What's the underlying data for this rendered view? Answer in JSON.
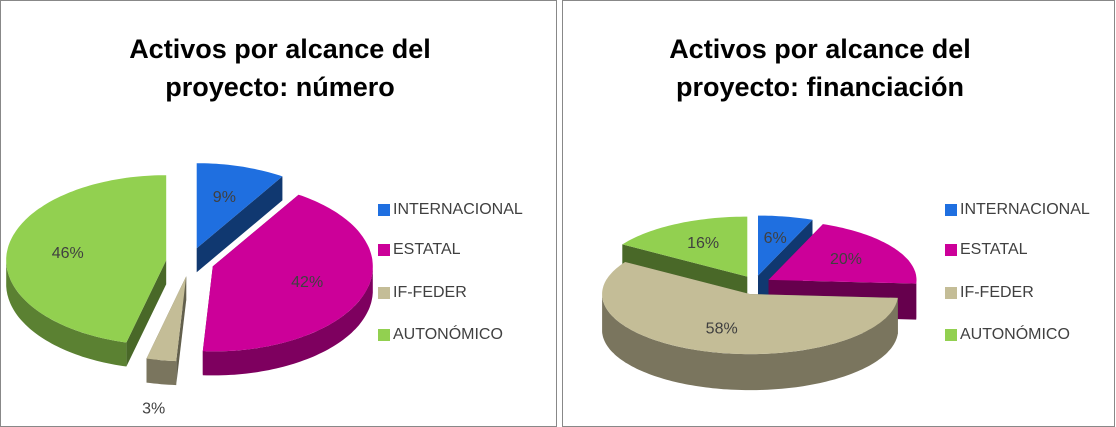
{
  "chart_data": [
    {
      "type": "pie",
      "title": "Activos por alcance del proyecto: número",
      "categories": [
        "INTERNACIONAL",
        "ESTATAL",
        "IF-FEDER",
        "AUTONÓMICO"
      ],
      "values": [
        9,
        42,
        3,
        46
      ],
      "value_labels": [
        "9%",
        "42%",
        "3%",
        "46%"
      ],
      "colors": [
        "#1f6fe0",
        "#cc0099",
        "#c4bd97",
        "#92d050"
      ],
      "legend": "right"
    },
    {
      "type": "pie",
      "title": "Activos por alcance del proyecto: financiación",
      "categories": [
        "INTERNACIONAL",
        "ESTATAL",
        "IF-FEDER",
        "AUTONÓMICO"
      ],
      "values": [
        6,
        20,
        58,
        16
      ],
      "value_labels": [
        "6%",
        "20%",
        "58%",
        "16%"
      ],
      "colors": [
        "#1f6fe0",
        "#cc0099",
        "#c4bd97",
        "#92d050"
      ],
      "legend": "right"
    }
  ]
}
